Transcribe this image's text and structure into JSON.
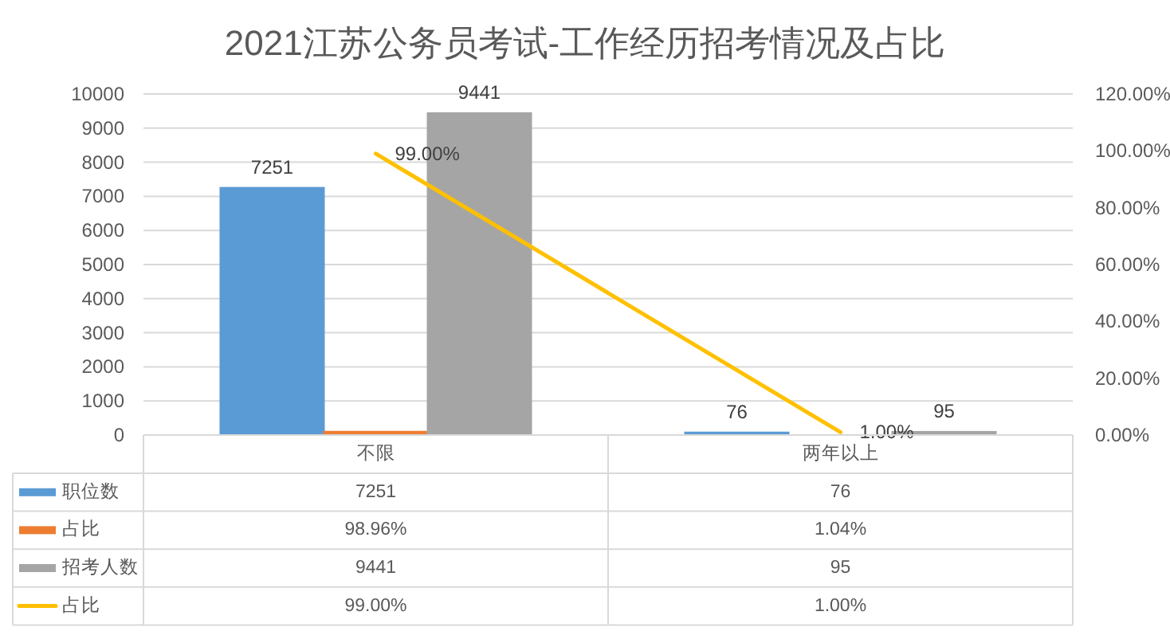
{
  "chart_data": {
    "type": "bar",
    "title": "2021江苏公务员考试-工作经历招考情况及占比",
    "categories": [
      "不限",
      "两年以上"
    ],
    "series": [
      {
        "name": "职位数",
        "color": "#5b9bd5",
        "values": [
          7251,
          76
        ],
        "value_labels": [
          "7251",
          "76"
        ],
        "data_labels": true
      },
      {
        "name": "占比",
        "color": "#ed7d31",
        "values": [
          98.96,
          1.04
        ],
        "value_labels": [
          "98.96%",
          "1.04%"
        ]
      },
      {
        "name": "招考人数",
        "color": "#a5a5a5",
        "values": [
          9441,
          95
        ],
        "value_labels": [
          "9441",
          "95"
        ],
        "data_labels": true
      },
      {
        "name": "占比",
        "type": "line",
        "axis": "y2",
        "color": "#ffc000",
        "values": [
          99,
          1
        ],
        "value_labels": [
          "99.00%",
          "1.00%"
        ],
        "data_labels": true
      }
    ],
    "ylim": [
      0,
      10000
    ],
    "yticks": [
      0,
      1000,
      2000,
      3000,
      4000,
      5000,
      6000,
      7000,
      8000,
      9000,
      10000
    ],
    "y2lim": [
      0,
      120
    ],
    "y2ticks": [
      {
        "value": 0,
        "label": "0.00%"
      },
      {
        "value": 20,
        "label": "20.00%"
      },
      {
        "value": 40,
        "label": "40.00%"
      },
      {
        "value": 60,
        "label": "60.00%"
      },
      {
        "value": 80,
        "label": "80.00%"
      },
      {
        "value": 100,
        "label": "100.00%"
      },
      {
        "value": 120,
        "label": "120.00%"
      }
    ],
    "grid": "y",
    "legend": "bottom"
  }
}
